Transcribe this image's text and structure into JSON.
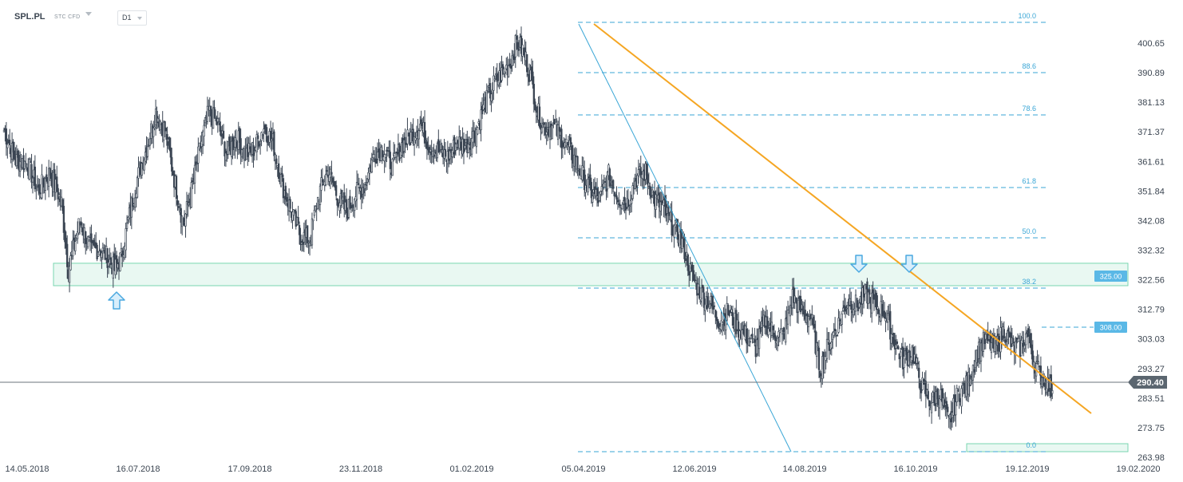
{
  "toolbar": {
    "symbol": "SPL.PL",
    "instrument_type": "STC CFD",
    "timeframe": "D1"
  },
  "colors": {
    "candle": "#3a4553",
    "trendline": "#f5a623",
    "fib_line": "#3aa6d6",
    "zone_fill": "#e9f8f2",
    "zone_border": "#79d6b0",
    "arrow": "#4aa8e0",
    "price_badge": "#5b6670",
    "level_badge": "#5ab8e6"
  },
  "chart_data": {
    "type": "candlestick",
    "timeframe": "D1",
    "x_labels": [
      "14.05.2018",
      "16.07.2018",
      "17.09.2018",
      "23.11.2018",
      "01.02.2019",
      "05.04.2019",
      "12.06.2019",
      "14.08.2019",
      "16.10.2019",
      "19.12.2019",
      "19.02.2020"
    ],
    "y_ticks": [
      400.65,
      390.89,
      381.13,
      371.37,
      361.61,
      351.84,
      342.08,
      332.32,
      322.56,
      312.79,
      303.03,
      293.27,
      283.51,
      273.75,
      263.98
    ],
    "ylim": [
      263.98,
      400.65
    ],
    "current_price": 290.4,
    "price_path": [
      [
        0,
        372
      ],
      [
        10,
        362
      ],
      [
        20,
        361
      ],
      [
        30,
        352
      ],
      [
        40,
        358
      ],
      [
        50,
        348
      ],
      [
        56,
        326
      ],
      [
        66,
        342
      ],
      [
        76,
        332
      ],
      [
        83,
        333
      ],
      [
        90,
        330
      ],
      [
        96,
        326
      ],
      [
        102,
        330
      ],
      [
        108,
        342
      ],
      [
        116,
        356
      ],
      [
        124,
        366
      ],
      [
        132,
        378
      ],
      [
        140,
        372
      ],
      [
        148,
        356
      ],
      [
        156,
        341
      ],
      [
        162,
        350
      ],
      [
        170,
        365
      ],
      [
        178,
        378
      ],
      [
        186,
        374
      ],
      [
        194,
        364
      ],
      [
        202,
        370
      ],
      [
        210,
        364
      ],
      [
        218,
        366
      ],
      [
        226,
        373
      ],
      [
        234,
        368
      ],
      [
        242,
        354
      ],
      [
        250,
        345
      ],
      [
        258,
        337
      ],
      [
        266,
        336
      ],
      [
        274,
        351
      ],
      [
        282,
        359
      ],
      [
        290,
        350
      ],
      [
        298,
        345
      ],
      [
        306,
        351
      ],
      [
        314,
        354
      ],
      [
        322,
        364
      ],
      [
        330,
        366
      ],
      [
        338,
        360
      ],
      [
        346,
        367
      ],
      [
        354,
        370
      ],
      [
        362,
        374
      ],
      [
        370,
        367
      ],
      [
        378,
        365
      ],
      [
        386,
        363
      ],
      [
        394,
        368
      ],
      [
        402,
        367
      ],
      [
        410,
        371
      ],
      [
        418,
        380
      ],
      [
        426,
        387
      ],
      [
        434,
        391
      ],
      [
        440,
        394
      ],
      [
        446,
        401
      ],
      [
        452,
        398
      ],
      [
        458,
        390
      ],
      [
        464,
        378
      ],
      [
        470,
        373
      ],
      [
        478,
        373
      ],
      [
        486,
        369
      ],
      [
        494,
        364
      ],
      [
        502,
        358
      ],
      [
        510,
        352
      ],
      [
        518,
        349
      ],
      [
        526,
        357
      ],
      [
        534,
        350
      ],
      [
        542,
        348
      ],
      [
        550,
        356
      ],
      [
        558,
        358
      ],
      [
        566,
        349
      ],
      [
        574,
        346
      ],
      [
        582,
        340
      ],
      [
        590,
        335
      ],
      [
        598,
        324
      ],
      [
        606,
        318
      ],
      [
        614,
        315
      ],
      [
        622,
        309
      ],
      [
        630,
        312
      ],
      [
        638,
        307
      ],
      [
        646,
        304
      ],
      [
        654,
        300
      ],
      [
        662,
        309
      ],
      [
        670,
        305
      ],
      [
        678,
        304
      ],
      [
        686,
        317
      ],
      [
        694,
        312
      ],
      [
        702,
        310
      ],
      [
        710,
        293
      ],
      [
        718,
        302
      ],
      [
        726,
        308
      ],
      [
        734,
        316
      ],
      [
        742,
        314
      ],
      [
        750,
        318
      ],
      [
        758,
        314
      ],
      [
        766,
        312
      ],
      [
        774,
        303
      ],
      [
        782,
        296
      ],
      [
        790,
        299
      ],
      [
        798,
        288
      ],
      [
        806,
        282
      ],
      [
        814,
        285
      ],
      [
        822,
        275
      ],
      [
        830,
        285
      ],
      [
        838,
        288
      ],
      [
        846,
        298
      ],
      [
        854,
        303
      ],
      [
        862,
        300
      ],
      [
        870,
        306
      ],
      [
        878,
        300
      ],
      [
        884,
        300
      ],
      [
        890,
        305
      ],
      [
        896,
        296
      ],
      [
        902,
        291
      ],
      [
        908,
        288
      ],
      [
        912,
        286
      ]
    ],
    "fibonacci": {
      "levels": [
        "100.0",
        "88.6",
        "78.6",
        "61.8",
        "50.0",
        "38.2",
        "0.0"
      ],
      "high_date": "05.04.2019",
      "low_date": "19.12.2019"
    },
    "horizontal_levels": [
      {
        "label": "325.00",
        "value": 325.0
      },
      {
        "label": "308.00",
        "value": 308.0
      }
    ],
    "support_zone": {
      "low": 320.6,
      "high": 328.0
    },
    "trendline": {
      "from": [
        "05.04.2019",
        412.0
      ],
      "to": [
        "19.02.2020",
        283.0
      ]
    },
    "fan_line": {
      "from": [
        "05.04.2019",
        412.0
      ],
      "to": [
        "14.08.2019",
        263.98
      ]
    },
    "markers": [
      {
        "type": "arrow-up",
        "date": "16.07.2018",
        "value": 318
      },
      {
        "type": "arrow-down",
        "date": "14.08.2019",
        "value": 331
      },
      {
        "type": "arrow-down",
        "date": "16.10.2019",
        "value": 331
      }
    ]
  }
}
